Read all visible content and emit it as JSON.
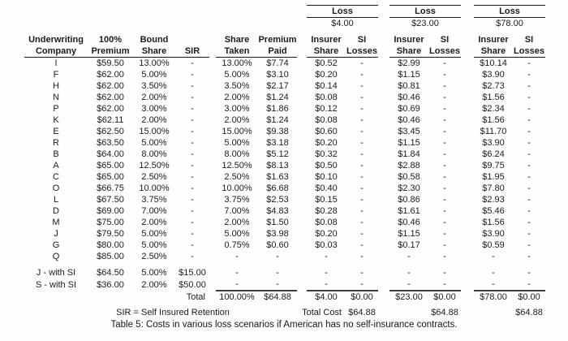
{
  "caption": "Table 5: Costs in various loss scenarios if American has no self-insurance contracts.",
  "loss_groups": [
    {
      "label": "Loss",
      "amount": "$4.00"
    },
    {
      "label": "Loss",
      "amount": "$23.00"
    },
    {
      "label": "Loss",
      "amount": "$78.00"
    }
  ],
  "headers": {
    "company_l1": "Underwriting",
    "company_l2": "Company",
    "premium_l1": "100%",
    "premium_l2": "Premium",
    "bound_l1": "Bound",
    "bound_l2": "Share",
    "sir_l2": "SIR",
    "taken_l1": "Share",
    "taken_l2": "Taken",
    "paid_l1": "Premium",
    "paid_l2": "Paid",
    "insurer_l1": "Insurer",
    "insurer_l2": "Share",
    "si_l1": "SI",
    "si_l2": "Losses"
  },
  "table": {
    "rows": [
      [
        "I",
        "$59.50",
        "13.00%",
        "-",
        "13.00%",
        "$7.74",
        "$0.52",
        "-",
        "$2.99",
        "-",
        "$10.14",
        "-"
      ],
      [
        "F",
        "$62.00",
        "5.00%",
        "-",
        "5.00%",
        "$3.10",
        "$0.20",
        "-",
        "$1.15",
        "-",
        "$3.90",
        "-"
      ],
      [
        "H",
        "$62.00",
        "3.50%",
        "-",
        "3.50%",
        "$2.17",
        "$0.14",
        "-",
        "$0.81",
        "-",
        "$2.73",
        "-"
      ],
      [
        "N",
        "$62.00",
        "2.00%",
        "-",
        "2.00%",
        "$1.24",
        "$0.08",
        "-",
        "$0.46",
        "-",
        "$1.56",
        "-"
      ],
      [
        "P",
        "$62.00",
        "3.00%",
        "-",
        "3.00%",
        "$1.86",
        "$0.12",
        "-",
        "$0.69",
        "-",
        "$2.34",
        "-"
      ],
      [
        "K",
        "$62.11",
        "2.00%",
        "-",
        "2.00%",
        "$1.24",
        "$0.08",
        "-",
        "$0.46",
        "-",
        "$1.56",
        "-"
      ],
      [
        "E",
        "$62.50",
        "15.00%",
        "-",
        "15.00%",
        "$9.38",
        "$0.60",
        "-",
        "$3.45",
        "-",
        "$11.70",
        "-"
      ],
      [
        "R",
        "$63.50",
        "5.00%",
        "-",
        "5.00%",
        "$3.18",
        "$0.20",
        "-",
        "$1.15",
        "-",
        "$3.90",
        "-"
      ],
      [
        "B",
        "$64.00",
        "8.00%",
        "-",
        "8.00%",
        "$5.12",
        "$0.32",
        "-",
        "$1.84",
        "-",
        "$6.24",
        "-"
      ],
      [
        "A",
        "$65.00",
        "12.50%",
        "-",
        "12.50%",
        "$8.13",
        "$0.50",
        "-",
        "$2.88",
        "-",
        "$9.75",
        "-"
      ],
      [
        "C",
        "$65.00",
        "2.50%",
        "-",
        "2.50%",
        "$1.63",
        "$0.10",
        "-",
        "$0.58",
        "-",
        "$1.95",
        "-"
      ],
      [
        "O",
        "$66.75",
        "10.00%",
        "-",
        "10.00%",
        "$6.68",
        "$0.40",
        "-",
        "$2.30",
        "-",
        "$7.80",
        "-"
      ],
      [
        "L",
        "$67.50",
        "3.75%",
        "-",
        "3.75%",
        "$2.53",
        "$0.15",
        "-",
        "$0.86",
        "-",
        "$2.93",
        "-"
      ],
      [
        "D",
        "$69.00",
        "7.00%",
        "-",
        "7.00%",
        "$4.83",
        "$0.28",
        "-",
        "$1.61",
        "-",
        "$5.46",
        "-"
      ],
      [
        "M",
        "$75.00",
        "2.00%",
        "-",
        "2.00%",
        "$1.50",
        "$0.08",
        "-",
        "$0.46",
        "-",
        "$1.56",
        "-"
      ],
      [
        "J",
        "$79.50",
        "5.00%",
        "-",
        "5.00%",
        "$3.98",
        "$0.20",
        "-",
        "$1.15",
        "-",
        "$3.90",
        "-"
      ],
      [
        "G",
        "$80.00",
        "5.00%",
        "-",
        "0.75%",
        "$0.60",
        "$0.03",
        "-",
        "$0.17",
        "-",
        "$0.59",
        "-"
      ],
      [
        "Q",
        "$85.00",
        "2.50%",
        "-",
        "-",
        "-",
        "-",
        "-",
        "-",
        "-",
        "-",
        "-"
      ]
    ],
    "si_rows": [
      [
        "J - with SI",
        "$64.50",
        "5.00%",
        "$15.00",
        "-",
        "-",
        "-",
        "-",
        "-",
        "-",
        "-",
        "-"
      ],
      [
        "S - with SI",
        "$36.00",
        "2.00%",
        "$50.00",
        "-",
        "-",
        "-",
        "-",
        "-",
        "-",
        "-",
        "-"
      ]
    ]
  },
  "totals": {
    "label": "Total",
    "values": [
      "100.00%",
      "$64.88",
      "$4.00",
      "$0.00",
      "$23.00",
      "$0.00",
      "$78.00",
      "$0.00"
    ]
  },
  "footnotes": {
    "sir_note": "SIR = Self Insured Retention",
    "total_cost_label": "Total Cost",
    "total_cost_values": [
      "$64.88",
      "$64.88",
      "$64.88"
    ]
  }
}
